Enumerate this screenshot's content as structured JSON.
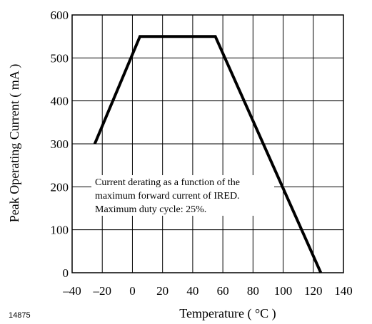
{
  "chart_data": {
    "type": "line",
    "xlabel": "Temperature ( °C )",
    "ylabel": "Peak Operating Current ( mA )",
    "xlim": [
      -40,
      140
    ],
    "ylim": [
      0,
      600
    ],
    "x_ticks": [
      -40,
      -20,
      0,
      20,
      40,
      60,
      80,
      100,
      120,
      140
    ],
    "y_ticks": [
      0,
      100,
      200,
      300,
      400,
      500,
      600
    ],
    "grid": true,
    "x_tick_labels": [
      "–40",
      "–20",
      "0",
      "20",
      "40",
      "60",
      "80",
      "100",
      "120",
      "140"
    ],
    "y_tick_labels": [
      "0",
      "100",
      "200",
      "300",
      "400",
      "500",
      "600"
    ],
    "series": [
      {
        "x": [
          -25,
          5,
          55,
          125
        ],
        "y": [
          300,
          550,
          550,
          0
        ],
        "color": "#000000"
      }
    ],
    "annotation": [
      "Current derating as a function of the",
      "maximum forward current of IRED.",
      "Maximum duty cycle: 25%."
    ],
    "figure_id": "14875"
  }
}
